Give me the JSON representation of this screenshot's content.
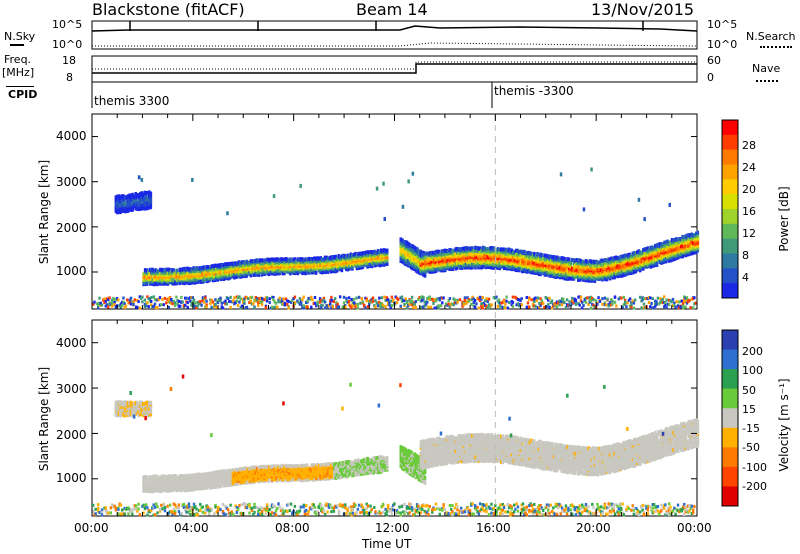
{
  "header": {
    "station": "Blackstone (fitACF)",
    "beam": "Beam 14",
    "date": "13/Nov/2015"
  },
  "params": {
    "nsky_label": "N.Sky",
    "nsky_ticks": [
      "10^5",
      "10^0"
    ],
    "nsearch_label": "N.Search",
    "nsearch_ticks": [
      "10^5",
      "10^0"
    ],
    "freq_label": "Freq.",
    "freq_unit": "[MHz]",
    "freq_ticks": [
      "18",
      "8"
    ],
    "nave_label": "Nave",
    "nave_ticks": [
      "60",
      "0"
    ],
    "cpid_label": "CPID",
    "cpid_segments": [
      "themis 3300",
      "themis -3300"
    ]
  },
  "chart_data": [
    {
      "type": "heatmap",
      "title": "",
      "ylabel": "Slant Range [km]",
      "xlabel": "",
      "ylim": [
        180,
        4500
      ],
      "y_ticks": [
        "1000",
        "2000",
        "3000",
        "4000"
      ],
      "colorbar": {
        "label": "Power [dB]",
        "ticks": [
          "28",
          "24",
          "20",
          "16",
          "12",
          "8",
          "4"
        ],
        "colors": [
          "#ff0000",
          "#ff3d00",
          "#ff7a00",
          "#ffa200",
          "#ffcc00",
          "#d8e000",
          "#9fd22a",
          "#5fb85a",
          "#3f9a7a",
          "#2f7aa0",
          "#2450c8",
          "#1a28e6"
        ]
      },
      "echo_regions": [
        {
          "name": "early-patch",
          "x": [
            0.9,
            2.3
          ],
          "center_km": [
            2500,
            2600
          ],
          "power_db": 8
        },
        {
          "name": "morning-band",
          "x": [
            2.0,
            11.7
          ],
          "center_km": [
            870,
            1300
          ],
          "power_db": 20
        },
        {
          "name": "evening-band",
          "x": [
            12.8,
            24.0
          ],
          "center_km": [
            1150,
            1650
          ],
          "power_db": 26
        },
        {
          "name": "near-range-clutter",
          "x": [
            0.0,
            24.0
          ],
          "center_km": [
            250,
            250
          ],
          "power_db": 10
        }
      ]
    },
    {
      "type": "heatmap",
      "title": "",
      "ylabel": "Slant Range [km]",
      "xlabel": "Time UT",
      "ylim": [
        180,
        4500
      ],
      "y_ticks": [
        "1000",
        "2000",
        "3000",
        "4000"
      ],
      "x_ticks": [
        "00:00",
        "04:00",
        "08:00",
        "12:00",
        "16:00",
        "20:00",
        "00:00"
      ],
      "colorbar": {
        "label": "Velocity [m s⁻¹]",
        "ticks": [
          "200",
          "100",
          "50",
          "15",
          "-15",
          "-50",
          "-100",
          "-200"
        ],
        "colors": [
          "#2a3fb0",
          "#2f6fd0",
          "#2aa050",
          "#6acb3a",
          "#c8c8c0",
          "#ffb000",
          "#ff7a00",
          "#ff4400",
          "#e00000"
        ]
      },
      "echo_regions": [
        {
          "name": "ground-scatter-morning",
          "x": [
            2.0,
            11.7
          ],
          "velocity": 0
        },
        {
          "name": "westward-flow",
          "x": [
            5.5,
            9.5
          ],
          "velocity": -30
        },
        {
          "name": "ground-scatter-evening",
          "x": [
            12.8,
            24.0
          ],
          "velocity": 0
        },
        {
          "name": "onset-green",
          "x": [
            12.3,
            13.0
          ],
          "velocity": 30
        }
      ]
    }
  ],
  "time_axis": {
    "label": "Time UT",
    "ticks": [
      "00:00",
      "04:00",
      "08:00",
      "12:00",
      "16:00",
      "20:00",
      "00:00"
    ],
    "marker_hour": 16
  }
}
